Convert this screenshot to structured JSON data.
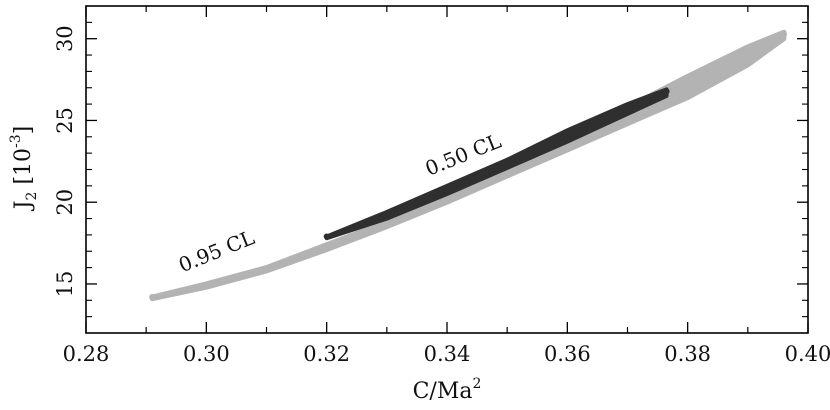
{
  "chart_data": {
    "type": "scatter",
    "title": "",
    "xlabel": {
      "base": "C/Ma",
      "sup": "2"
    },
    "ylabel": {
      "base": "J",
      "sub": "2",
      "unit_prefix": " [10",
      "unit_sup": "-3",
      "unit_suffix": "]"
    },
    "xlim": [
      0.28,
      0.4
    ],
    "ylim": [
      12,
      32
    ],
    "x_ticks": [
      "0.28",
      "0.30",
      "0.32",
      "0.34",
      "0.36",
      "0.38",
      "0.40"
    ],
    "y_ticks": [
      "15",
      "20",
      "25",
      "30"
    ],
    "grid": false,
    "series": [
      {
        "name": "0.95 CL",
        "color": "#b3b3b3",
        "boundary": [
          {
            "x": 0.291,
            "y": 14.2
          },
          {
            "x": 0.3,
            "y": 15.0
          },
          {
            "x": 0.31,
            "y": 16.0
          },
          {
            "x": 0.32,
            "y": 17.4
          },
          {
            "x": 0.33,
            "y": 18.8
          },
          {
            "x": 0.34,
            "y": 20.4
          },
          {
            "x": 0.35,
            "y": 22.2
          },
          {
            "x": 0.36,
            "y": 24.0
          },
          {
            "x": 0.37,
            "y": 25.8
          },
          {
            "x": 0.38,
            "y": 27.7
          },
          {
            "x": 0.39,
            "y": 29.5
          },
          {
            "x": 0.396,
            "y": 30.4
          },
          {
            "x": 0.396,
            "y": 30.0
          },
          {
            "x": 0.39,
            "y": 28.4
          },
          {
            "x": 0.38,
            "y": 26.4
          },
          {
            "x": 0.37,
            "y": 24.8
          },
          {
            "x": 0.36,
            "y": 23.2
          },
          {
            "x": 0.35,
            "y": 21.6
          },
          {
            "x": 0.34,
            "y": 20.0
          },
          {
            "x": 0.33,
            "y": 18.5
          },
          {
            "x": 0.32,
            "y": 17.1
          },
          {
            "x": 0.31,
            "y": 15.8
          },
          {
            "x": 0.3,
            "y": 14.8
          },
          {
            "x": 0.291,
            "y": 14.1
          }
        ]
      },
      {
        "name": "0.50 CL",
        "color": "#2f2f2f",
        "boundary": [
          {
            "x": 0.32,
            "y": 17.9
          },
          {
            "x": 0.33,
            "y": 19.4
          },
          {
            "x": 0.34,
            "y": 21.0
          },
          {
            "x": 0.35,
            "y": 22.6
          },
          {
            "x": 0.36,
            "y": 24.4
          },
          {
            "x": 0.37,
            "y": 26.0
          },
          {
            "x": 0.3765,
            "y": 26.9
          },
          {
            "x": 0.3765,
            "y": 26.5
          },
          {
            "x": 0.37,
            "y": 25.4
          },
          {
            "x": 0.36,
            "y": 23.7
          },
          {
            "x": 0.35,
            "y": 22.1
          },
          {
            "x": 0.34,
            "y": 20.5
          },
          {
            "x": 0.33,
            "y": 19.0
          },
          {
            "x": 0.32,
            "y": 17.8
          }
        ]
      }
    ],
    "annotations": [
      {
        "text": "0.95 CL",
        "x": 0.296,
        "y": 15.7,
        "rotation": -22
      },
      {
        "text": "0.50 CL",
        "x": 0.337,
        "y": 21.6,
        "rotation": -22
      }
    ]
  }
}
